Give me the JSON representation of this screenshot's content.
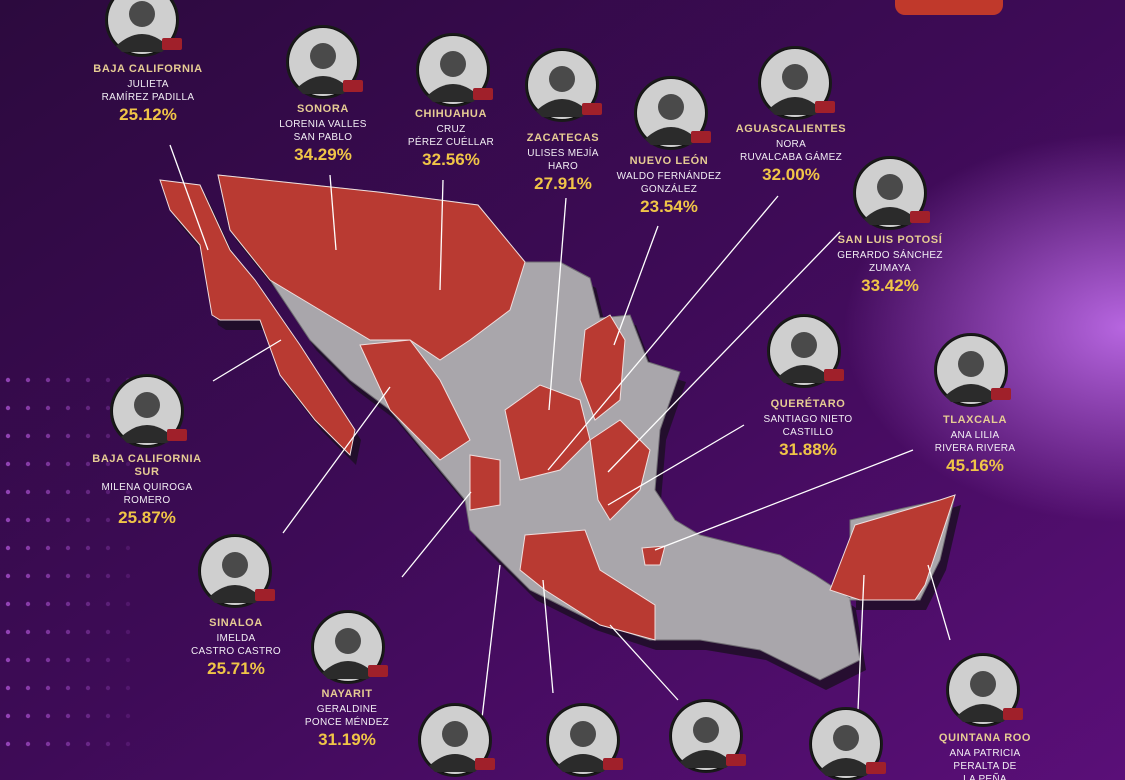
{
  "candidates": [
    {
      "state": [
        "BAJA CALIFORNIA"
      ],
      "name": [
        "JULIETA",
        "RAMÍREZ PADILLA"
      ],
      "percent": "25.12%"
    },
    {
      "state": [
        "SONORA"
      ],
      "name": [
        "LORENIA VALLES",
        "SAN PABLO"
      ],
      "percent": "34.29%"
    },
    {
      "state": [
        "CHIHUAHUA"
      ],
      "name": [
        "CRUZ",
        "PÉREZ CUÉLLAR"
      ],
      "percent": "32.56%"
    },
    {
      "state": [
        "ZACATECAS"
      ],
      "name": [
        "ULISES MEJÍA",
        "HARO"
      ],
      "percent": "27.91%"
    },
    {
      "state": [
        "NUEVO LEÓN"
      ],
      "name": [
        "WALDO FERNÁNDEZ",
        "GONZÁLEZ"
      ],
      "percent": "23.54%"
    },
    {
      "state": [
        "AGUASCALIENTES"
      ],
      "name": [
        "NORA",
        "RUVALCABA GÁMEZ"
      ],
      "percent": "32.00%"
    },
    {
      "state": [
        "SAN LUIS POTOSÍ"
      ],
      "name": [
        "GERARDO SÁNCHEZ",
        "ZUMAYA"
      ],
      "percent": "33.42%"
    },
    {
      "state": [
        "QUERÉTARO"
      ],
      "name": [
        "SANTIAGO NIETO",
        "CASTILLO"
      ],
      "percent": "31.88%"
    },
    {
      "state": [
        "TLAXCALA"
      ],
      "name": [
        "ANA LILIA",
        "RIVERA RIVERA"
      ],
      "percent": "45.16%"
    },
    {
      "state": [
        "BAJA CALIFORNIA",
        "SUR"
      ],
      "name": [
        "MILENA QUIROGA",
        "ROMERO"
      ],
      "percent": "25.87%"
    },
    {
      "state": [
        "SINALOA"
      ],
      "name": [
        "IMELDA",
        "CASTRO CASTRO"
      ],
      "percent": "25.71%"
    },
    {
      "state": [
        "NAYARIT"
      ],
      "name": [
        "GERALDINE",
        "PONCE MÉNDEZ"
      ],
      "percent": "31.19%"
    },
    {
      "state": [
        "QUINTANA ROO"
      ],
      "name": [
        "ANA PATRICIA",
        "PERALTA DE",
        "LA PEÑA"
      ]
    }
  ]
}
